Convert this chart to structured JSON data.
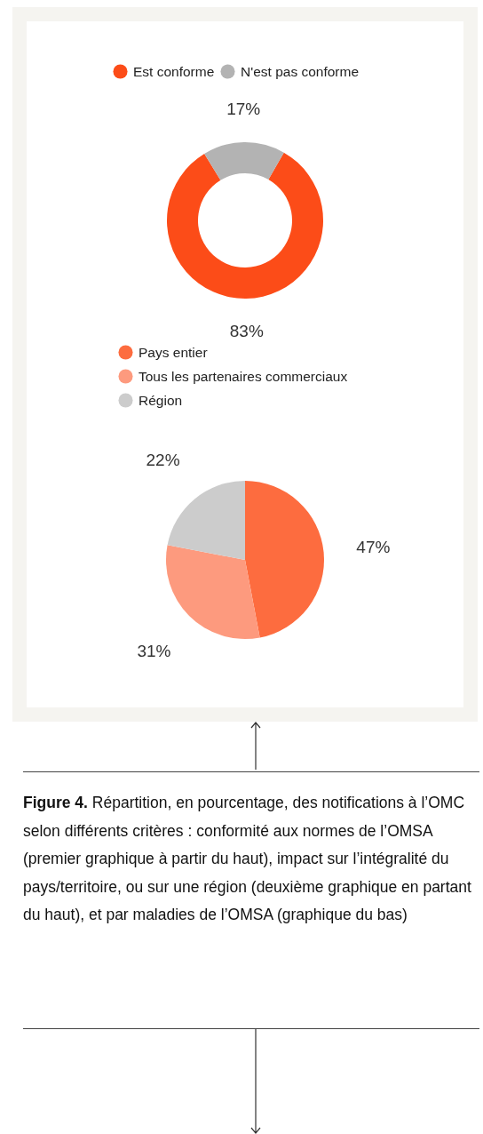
{
  "chart_data": [
    {
      "type": "donut",
      "categories": [
        "Est conforme",
        "N'est pas conforme"
      ],
      "values": [
        83,
        17
      ],
      "colors": [
        "#fc4c18",
        "#b3b3b3"
      ],
      "value_labels": [
        "83%",
        "17%"
      ],
      "legend": "top"
    },
    {
      "type": "pie",
      "categories": [
        "Pays entier",
        "Tous les partenaires commerciaux",
        "Région"
      ],
      "values": [
        47,
        31,
        22
      ],
      "colors": [
        "#fd6c3f",
        "#fd9a7e",
        "#cccccc"
      ],
      "value_labels": [
        "47%",
        "31%",
        "22%"
      ],
      "legend": "top left",
      "annotations": [
        "Figure 4.",
        "Répartition, en pourcentage, des notifications à l’OMC selon différents critères : conformité aux normes de l’OMSA (premier graphique à partir du haut), impact sur l’intégralité du pays/territoire, ou sur une région (deuxième graphique en partant du haut), et par maladies de l’OMSA (graphique du bas)"
      ]
    }
  ]
}
